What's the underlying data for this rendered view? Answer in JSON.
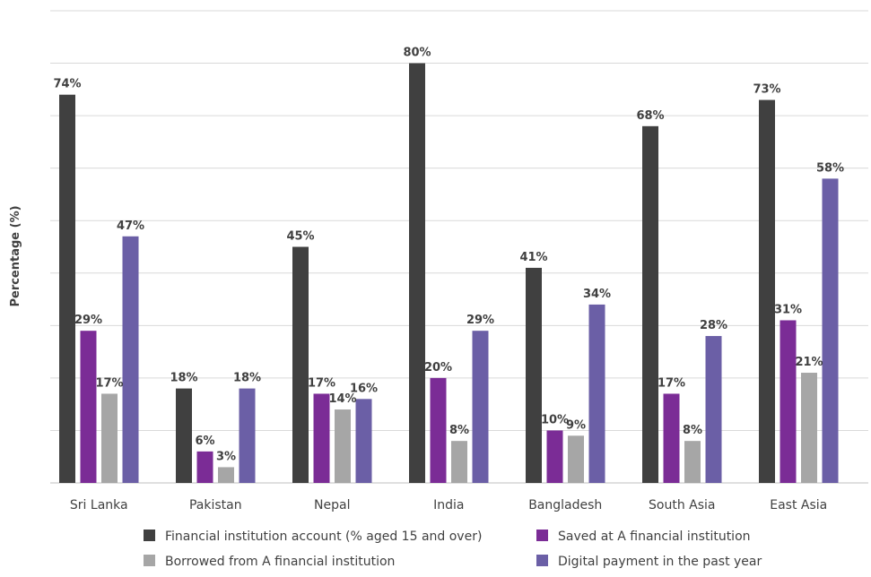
{
  "chart_data": {
    "type": "bar",
    "title": "",
    "xlabel": "",
    "ylabel": "Percentage (%)",
    "ylim": [
      0,
      90
    ],
    "grid": true,
    "legend_position": "bottom",
    "categories": [
      "Sri Lanka",
      "Pakistan",
      "Nepal",
      "India",
      "Bangladesh",
      "South Asia",
      "East Asia"
    ],
    "series": [
      {
        "name": "Financial institution account (% aged 15 and over)",
        "color": "#404040",
        "values": [
          74,
          18,
          45,
          80,
          41,
          68,
          73
        ],
        "labels": [
          "74%",
          "18%",
          "45%",
          "80%",
          "41%",
          "68%",
          "73%"
        ]
      },
      {
        "name": "Saved at A financial institution",
        "color": "#7b2c96",
        "values": [
          29,
          6,
          17,
          20,
          10,
          17,
          31
        ],
        "labels": [
          "29%",
          "6%",
          "17%",
          "20%",
          "10%",
          "17%",
          "31%"
        ]
      },
      {
        "name": "Borrowed from A financial institution",
        "color": "#a6a6a6",
        "values": [
          17,
          3,
          14,
          8,
          9,
          8,
          21
        ],
        "labels": [
          "17%",
          "3%",
          "14%",
          "8%",
          "9%",
          "8%",
          "21%"
        ]
      },
      {
        "name": "Digital payment in the past year",
        "color": "#6b5fa6",
        "values": [
          47,
          18,
          16,
          29,
          34,
          28,
          58
        ],
        "labels": [
          "47%",
          "18%",
          "16%",
          "29%",
          "34%",
          "28%",
          "58%"
        ]
      }
    ]
  }
}
